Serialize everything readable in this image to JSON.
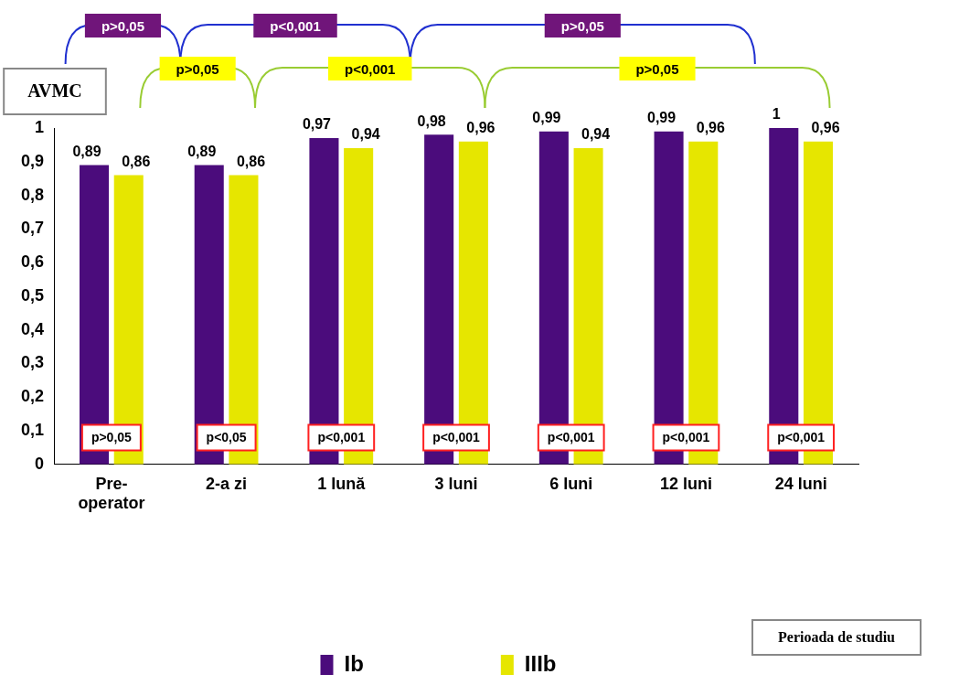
{
  "chart_data": {
    "type": "bar",
    "ylabel": "AVMC",
    "categories": [
      "Pre-operator",
      "2-a zi",
      "1 lună",
      "3 luni",
      "6 luni",
      "12 luni",
      "24 luni"
    ],
    "series": [
      {
        "name": "Ib",
        "color": "#4b0c7c",
        "values": [
          0.89,
          0.89,
          0.97,
          0.98,
          0.99,
          0.99,
          1
        ],
        "value_labels": [
          "0,89",
          "0,89",
          "0,97",
          "0,98",
          "0,99",
          "0,99",
          "1"
        ]
      },
      {
        "name": "IIIb",
        "color": "#e6e600",
        "values": [
          0.86,
          0.86,
          0.94,
          0.96,
          0.94,
          0.96,
          0.96
        ],
        "value_labels": [
          "0,86",
          "0,86",
          "0,94",
          "0,96",
          "0,94",
          "0,96",
          "0,96"
        ]
      }
    ],
    "ylim": [
      0,
      1
    ],
    "yticks": [
      {
        "value": 0,
        "label": "0"
      },
      {
        "value": 0.1,
        "label": "0,1"
      },
      {
        "value": 0.2,
        "label": "0,2"
      },
      {
        "value": 0.3,
        "label": "0,3"
      },
      {
        "value": 0.4,
        "label": "0,4"
      },
      {
        "value": 0.5,
        "label": "0,5"
      },
      {
        "value": 0.6,
        "label": "0,6"
      },
      {
        "value": 0.7,
        "label": "0,7"
      },
      {
        "value": 0.8,
        "label": "0,8"
      },
      {
        "value": 0.9,
        "label": "0,9"
      },
      {
        "value": 1,
        "label": "1"
      }
    ],
    "grid": false,
    "legend": "bottom",
    "annotations": [
      {
        "text": "p>0,05",
        "x": "Pre-operator"
      },
      {
        "text": "p<0,05",
        "x": "2-a zi"
      },
      {
        "text": "p<0,001",
        "x": "1 lună"
      },
      {
        "text": "p<0,001",
        "x": "3 luni"
      },
      {
        "text": "p<0,001",
        "x": "6 luni"
      },
      {
        "text": "p<0,001",
        "x": "12 luni"
      },
      {
        "text": "p<0,001",
        "x": "24 luni"
      },
      "p>0,05",
      "p<0,001",
      "p>0,05",
      "p>0,05",
      "p<0,001",
      "p>0,05",
      "Perioada de studiu"
    ]
  }
}
